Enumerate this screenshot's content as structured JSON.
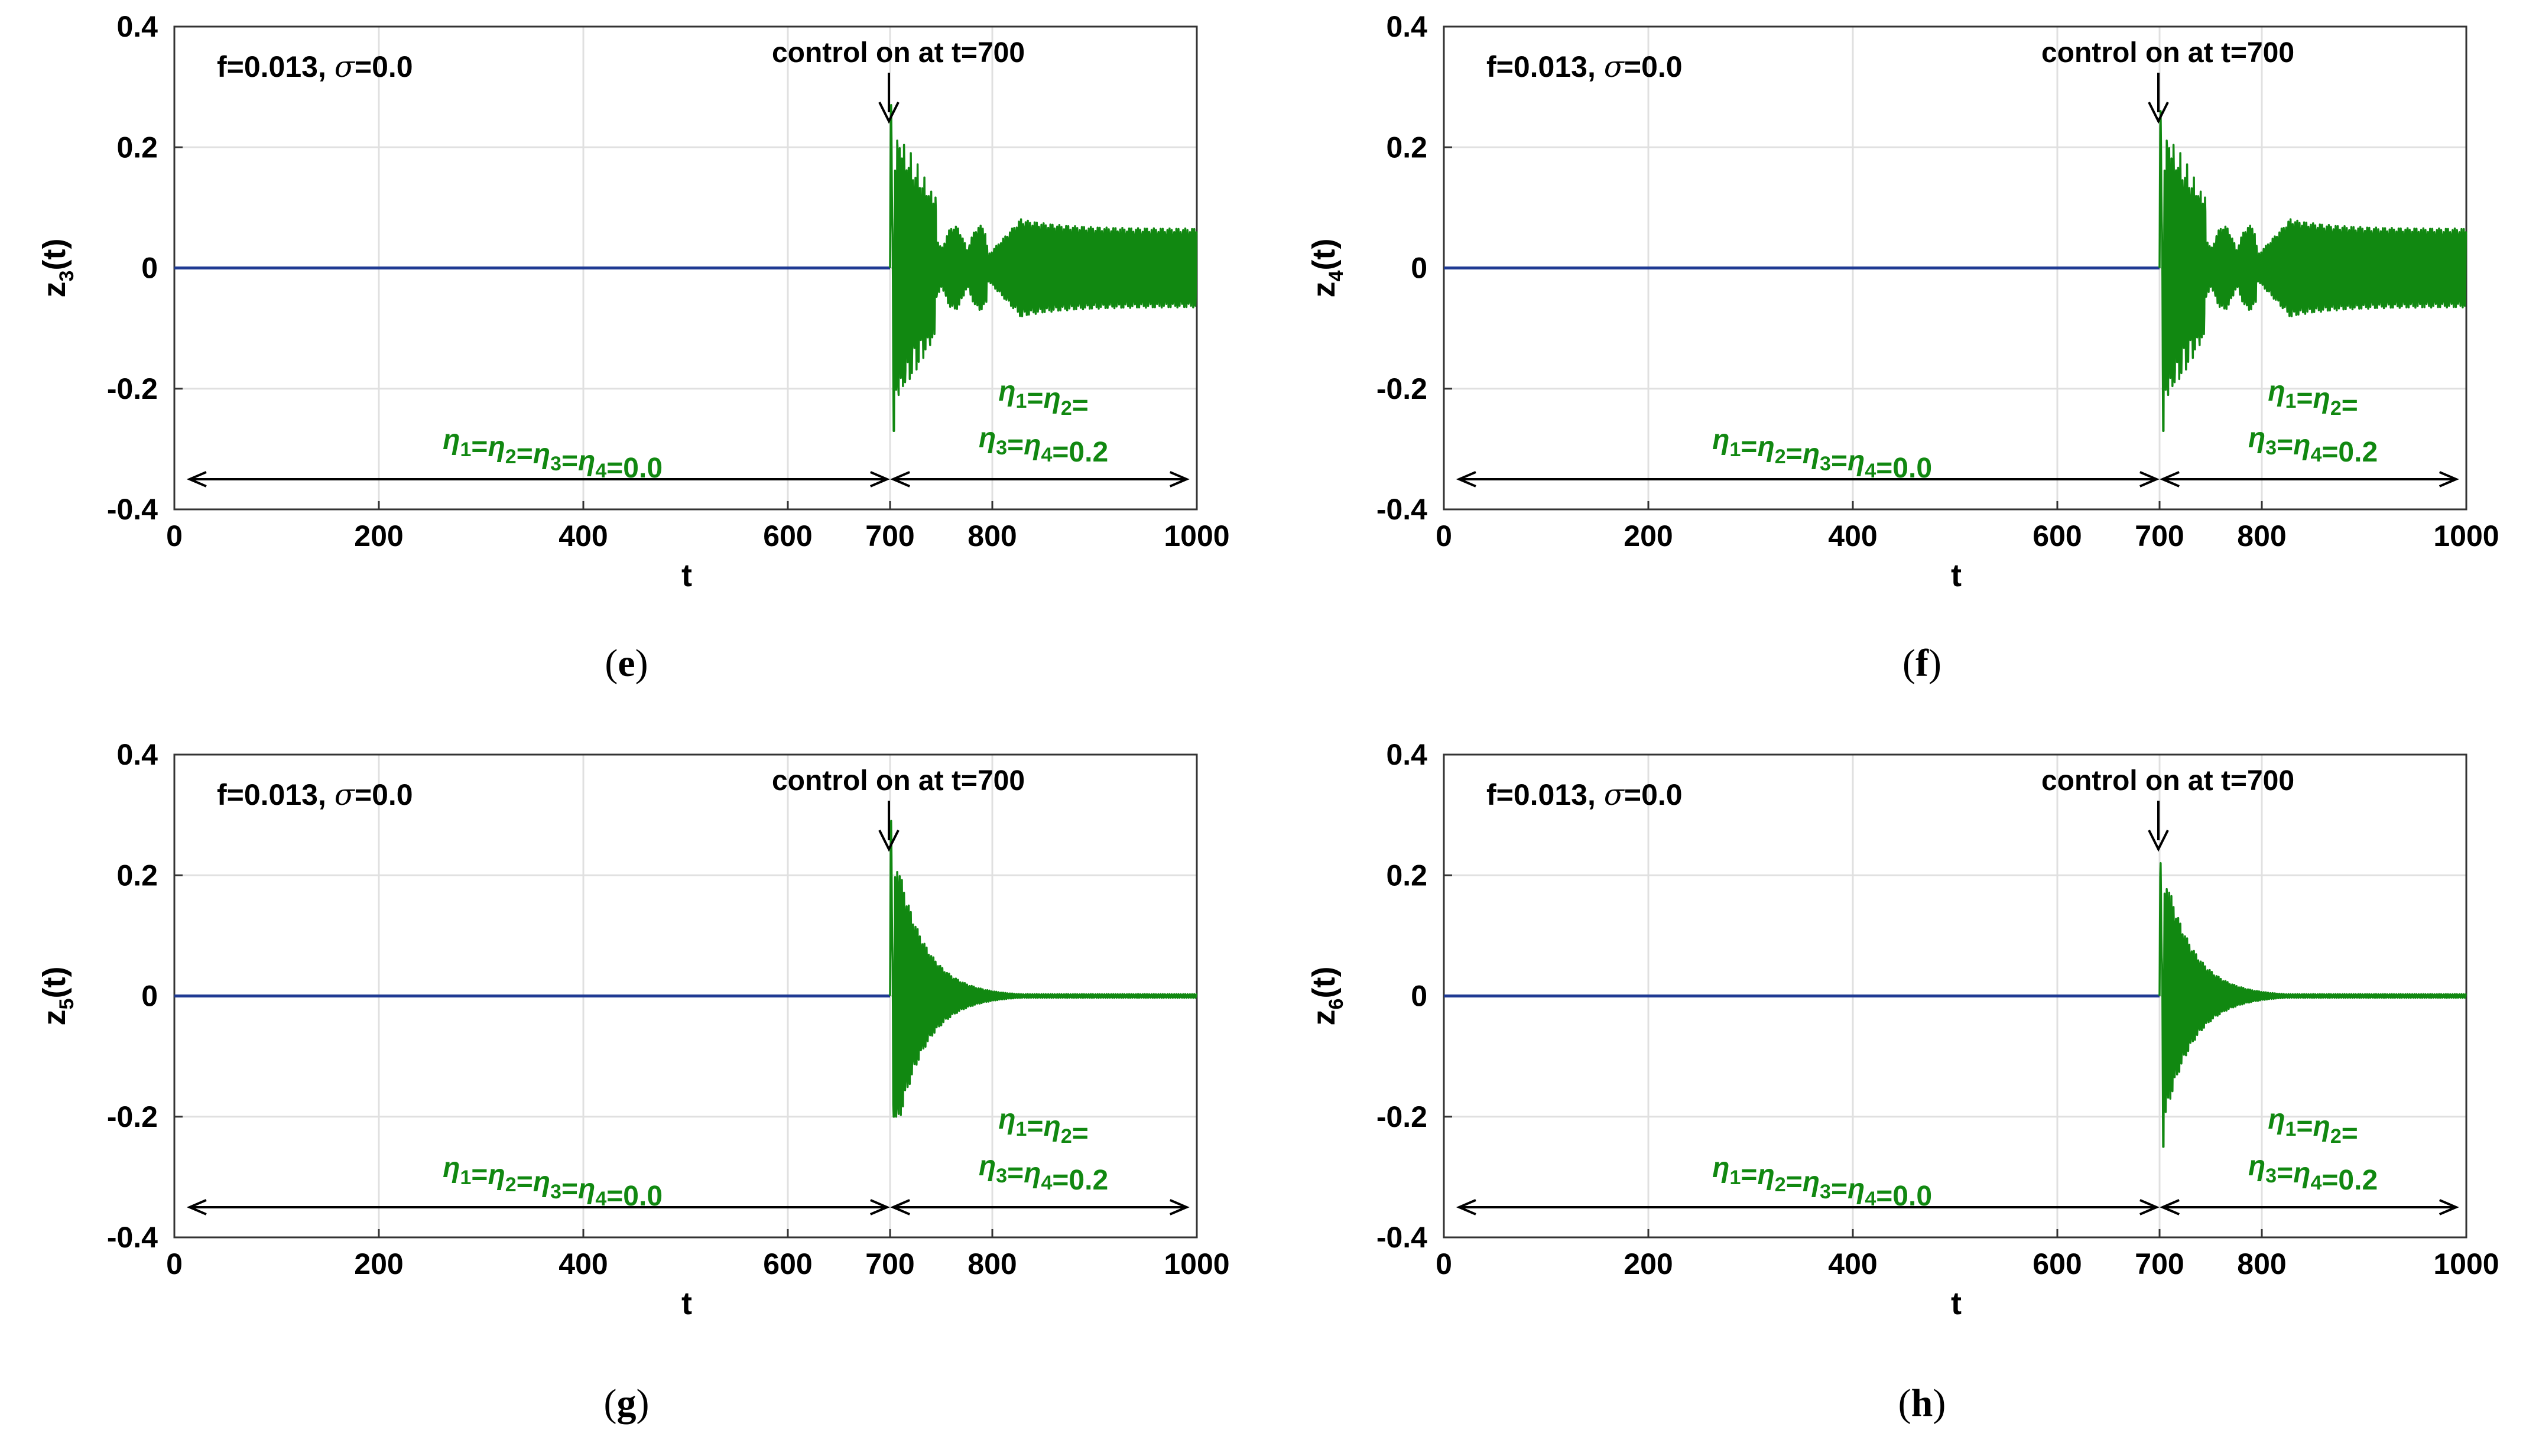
{
  "colors": {
    "before_control": "#1f3a93",
    "after_control": "#118811",
    "annotation_green": "#118811",
    "grid": "#e0e0e0",
    "axes": "#000000"
  },
  "chart_data": [
    {
      "panel_label": "e",
      "type": "line",
      "title": "",
      "xlabel": "t",
      "ylabel_main": "z",
      "ylabel_sub": "3",
      "ylabel_suffix": "(t)",
      "xlim": [
        0,
        1000
      ],
      "ylim": [
        -0.4,
        0.4
      ],
      "x_ticks": [
        0,
        200,
        400,
        600,
        700,
        800,
        1000
      ],
      "y_ticks": [
        0.4,
        0.2,
        0,
        -0.2,
        -0.4
      ],
      "y_tick_labels": [
        "0.4",
        "0.2",
        "0",
        "-0.2",
        "-0.4"
      ],
      "grid": true,
      "params_text": "f=0.013, ",
      "params_sigma": "σ",
      "params_sigma_value": "=0.0",
      "control_text": "control on at t=700",
      "control_time": 700,
      "before_label": {
        "prefix": "η",
        "text": "η1=η2=η3=η4=0.0"
      },
      "after_label_line1": "η1=η2=",
      "after_label_line2": "η3=η4=0.2",
      "series": [
        {
          "name": "before control (η=0.0)",
          "color": "#1f3a93",
          "x": [
            0,
            700
          ],
          "values": [
            0,
            0
          ]
        },
        {
          "name": "after control (η=0.2)",
          "color": "#118811",
          "t_start": 700,
          "t_end": 1000,
          "transient_peak": 0.27,
          "transient_min": -0.27,
          "steady_amplitude": 0.065,
          "envelope": "sustained"
        }
      ]
    },
    {
      "panel_label": "f",
      "type": "line",
      "title": "",
      "xlabel": "t",
      "ylabel_main": "z",
      "ylabel_sub": "4",
      "ylabel_suffix": "(t)",
      "xlim": [
        0,
        1000
      ],
      "ylim": [
        -0.4,
        0.4
      ],
      "x_ticks": [
        0,
        200,
        400,
        600,
        700,
        800,
        1000
      ],
      "y_ticks": [
        0.4,
        0.2,
        0,
        -0.2,
        -0.4
      ],
      "y_tick_labels": [
        "0.4",
        "0.2",
        "0",
        "-0.2",
        "-0.4"
      ],
      "grid": true,
      "params_text": "f=0.013, ",
      "params_sigma": "σ",
      "params_sigma_value": "=0.0",
      "control_text": "control on at t=700",
      "control_time": 700,
      "before_label": {
        "prefix": "η",
        "text": "η1=η2=η3=η4=0.0"
      },
      "after_label_line1": "η1=η2=",
      "after_label_line2": "η3=η4=0.2",
      "series": [
        {
          "name": "before control (η=0.0)",
          "color": "#1f3a93",
          "x": [
            0,
            700
          ],
          "values": [
            0,
            0
          ]
        },
        {
          "name": "after control (η=0.2)",
          "color": "#118811",
          "t_start": 700,
          "t_end": 1000,
          "transient_peak": 0.26,
          "transient_min": -0.27,
          "steady_amplitude": 0.065,
          "envelope": "sustained"
        }
      ]
    },
    {
      "panel_label": "g",
      "type": "line",
      "title": "",
      "xlabel": "t",
      "ylabel_main": "z",
      "ylabel_sub": "5",
      "ylabel_suffix": "(t)",
      "xlim": [
        0,
        1000
      ],
      "ylim": [
        -0.4,
        0.4
      ],
      "x_ticks": [
        0,
        200,
        400,
        600,
        700,
        800,
        1000
      ],
      "y_ticks": [
        0.4,
        0.2,
        0,
        -0.2,
        -0.4
      ],
      "y_tick_labels": [
        "0.4",
        "0.2",
        "0",
        "-0.2",
        "-0.4"
      ],
      "grid": true,
      "params_text": "f=0.013, ",
      "params_sigma": "σ",
      "params_sigma_value": "=0.0",
      "control_text": "control on at t=700",
      "control_time": 700,
      "before_label": {
        "prefix": "η",
        "text": "η1=η2=η3=η4=0.0"
      },
      "after_label_line1": "η1=η2=",
      "after_label_line2": "η3=η4=0.2",
      "series": [
        {
          "name": "before control (η=0.0)",
          "color": "#1f3a93",
          "x": [
            0,
            700
          ],
          "values": [
            0,
            0
          ]
        },
        {
          "name": "after control (η=0.2)",
          "color": "#118811",
          "t_start": 700,
          "t_end": 1000,
          "transient_peak": 0.29,
          "transient_min": -0.2,
          "steady_amplitude": 0.003,
          "envelope": "decaying"
        }
      ]
    },
    {
      "panel_label": "h",
      "type": "line",
      "title": "",
      "xlabel": "t",
      "ylabel_main": "z",
      "ylabel_sub": "6",
      "ylabel_suffix": "(t)",
      "xlim": [
        0,
        1000
      ],
      "ylim": [
        -0.4,
        0.4
      ],
      "x_ticks": [
        0,
        200,
        400,
        600,
        700,
        800,
        1000
      ],
      "y_ticks": [
        0.4,
        0.2,
        0,
        -0.2,
        -0.4
      ],
      "y_tick_labels": [
        "0.4",
        "0.2",
        "0",
        "-0.2",
        "-0.4"
      ],
      "grid": true,
      "params_text": "f=0.013, ",
      "params_sigma": "σ",
      "params_sigma_value": "=0.0",
      "control_text": "control on at t=700",
      "control_time": 700,
      "before_label": {
        "prefix": "η",
        "text": "η1=η2=η3=η4=0.0"
      },
      "after_label_line1": "η1=η2=",
      "after_label_line2": "η3=η4=0.2",
      "series": [
        {
          "name": "before control (η=0.0)",
          "color": "#1f3a93",
          "x": [
            0,
            700
          ],
          "values": [
            0,
            0
          ]
        },
        {
          "name": "after control (η=0.2)",
          "color": "#118811",
          "t_start": 700,
          "t_end": 1000,
          "transient_peak": 0.22,
          "transient_min": -0.25,
          "steady_amplitude": 0.003,
          "envelope": "decaying"
        }
      ]
    }
  ]
}
